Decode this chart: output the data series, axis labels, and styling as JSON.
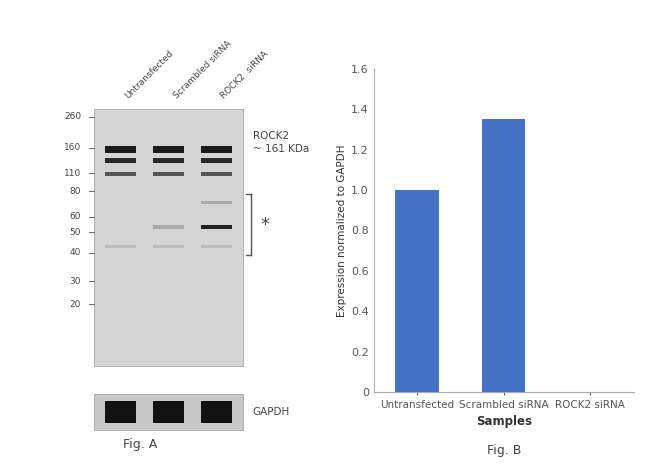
{
  "fig_width": 6.5,
  "fig_height": 4.75,
  "background_color": "#ffffff",
  "bar_categories": [
    "Untransfected",
    "Scrambled siRNA",
    "ROCK2 siRNA"
  ],
  "bar_values": [
    1.0,
    1.35,
    0.0
  ],
  "bar_color": "#4472C4",
  "bar_ylim": [
    0,
    1.6
  ],
  "bar_yticks": [
    0,
    0.2,
    0.4,
    0.6,
    0.8,
    1.0,
    1.2,
    1.4,
    1.6
  ],
  "bar_ylabel": "Expression normalized to GAPDH",
  "bar_xlabel": "Samples",
  "fig_b_label": "Fig. B",
  "fig_a_label": "Fig. A",
  "wb_mw_labels": [
    "260",
    "160",
    "110",
    "80",
    "60",
    "50",
    "40",
    "30",
    "20"
  ],
  "wb_annotation": "ROCK2\n~ 161 KDa",
  "wb_gapdh_label": "GAPDH",
  "wb_asterisk": "*",
  "wb_sample_labels": [
    "Untransfected",
    "Scrambled siRNA",
    "ROCK2  siRNA"
  ]
}
